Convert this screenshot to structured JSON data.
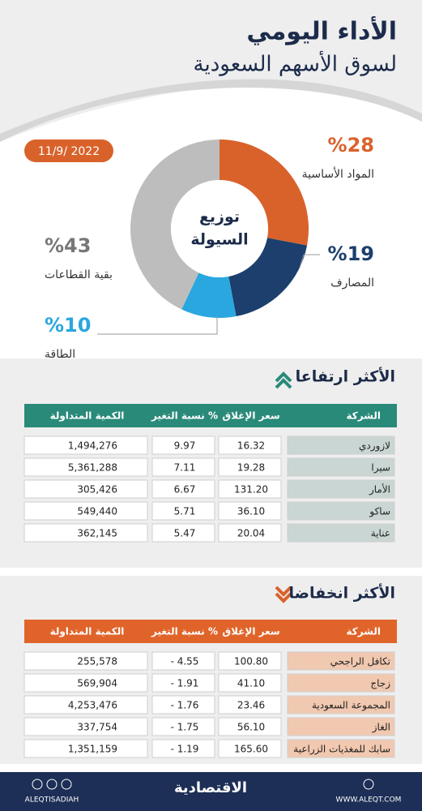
{
  "header": {
    "title": "الأداء اليومي",
    "subtitle": "لسوق الأسهم السعودية"
  },
  "date": "11/9/ 2022",
  "chart_data": {
    "type": "donut",
    "title": [
      "توزيع",
      "السيولة"
    ],
    "categories": [
      "المواد الأساسية",
      "المصارف",
      "الطاقة",
      "بقية القطاعات"
    ],
    "values": [
      28,
      19,
      10,
      43
    ],
    "value_labels": [
      "%28",
      "%19",
      "%10",
      "%43"
    ],
    "colors": [
      "#d9622b",
      "#1c3f6e",
      "#2aa7df",
      "#bdbdbd"
    ]
  },
  "gainers": {
    "title": "الأكثر ارتفاعا",
    "columns": [
      "الشركة",
      "سعر الإغلاق",
      "نسبة التغير %",
      "الكمية المتداولة"
    ],
    "rows": [
      [
        "لازوردي",
        "16.32",
        "9.97",
        "1,494,276"
      ],
      [
        "سيرا",
        "19.28",
        "7.11",
        "5,361,288"
      ],
      [
        "الأمار",
        "131.20",
        "6.67",
        "305,426"
      ],
      [
        "ساكو",
        "36.10",
        "5.71",
        "549,440"
      ],
      [
        "عناية",
        "20.04",
        "5.47",
        "362,145"
      ]
    ]
  },
  "losers": {
    "title": "الأكثر انخفاضا",
    "columns": [
      "الشركة",
      "سعر الإغلاق",
      "نسبة التغير %",
      "الكمية المتداولة"
    ],
    "rows": [
      [
        "تكافل الراجحي",
        "100.80",
        "- 4.55",
        "255,578"
      ],
      [
        "زجاج",
        "41.10",
        "- 1.91",
        "569,904"
      ],
      [
        "المجموعة السعودية",
        "23.46",
        "- 1.76",
        "4,253,476"
      ],
      [
        "الغاز",
        "56.10",
        "- 1.75",
        "337,754"
      ],
      [
        "سابك للمغذيات الزراعية",
        "165.60",
        "- 1.19",
        "1,351,159"
      ]
    ]
  },
  "footer": {
    "handle": "ALEQTISADIAH",
    "brand": "الاقتصادية",
    "site": "WWW.ALEQT.COM"
  }
}
